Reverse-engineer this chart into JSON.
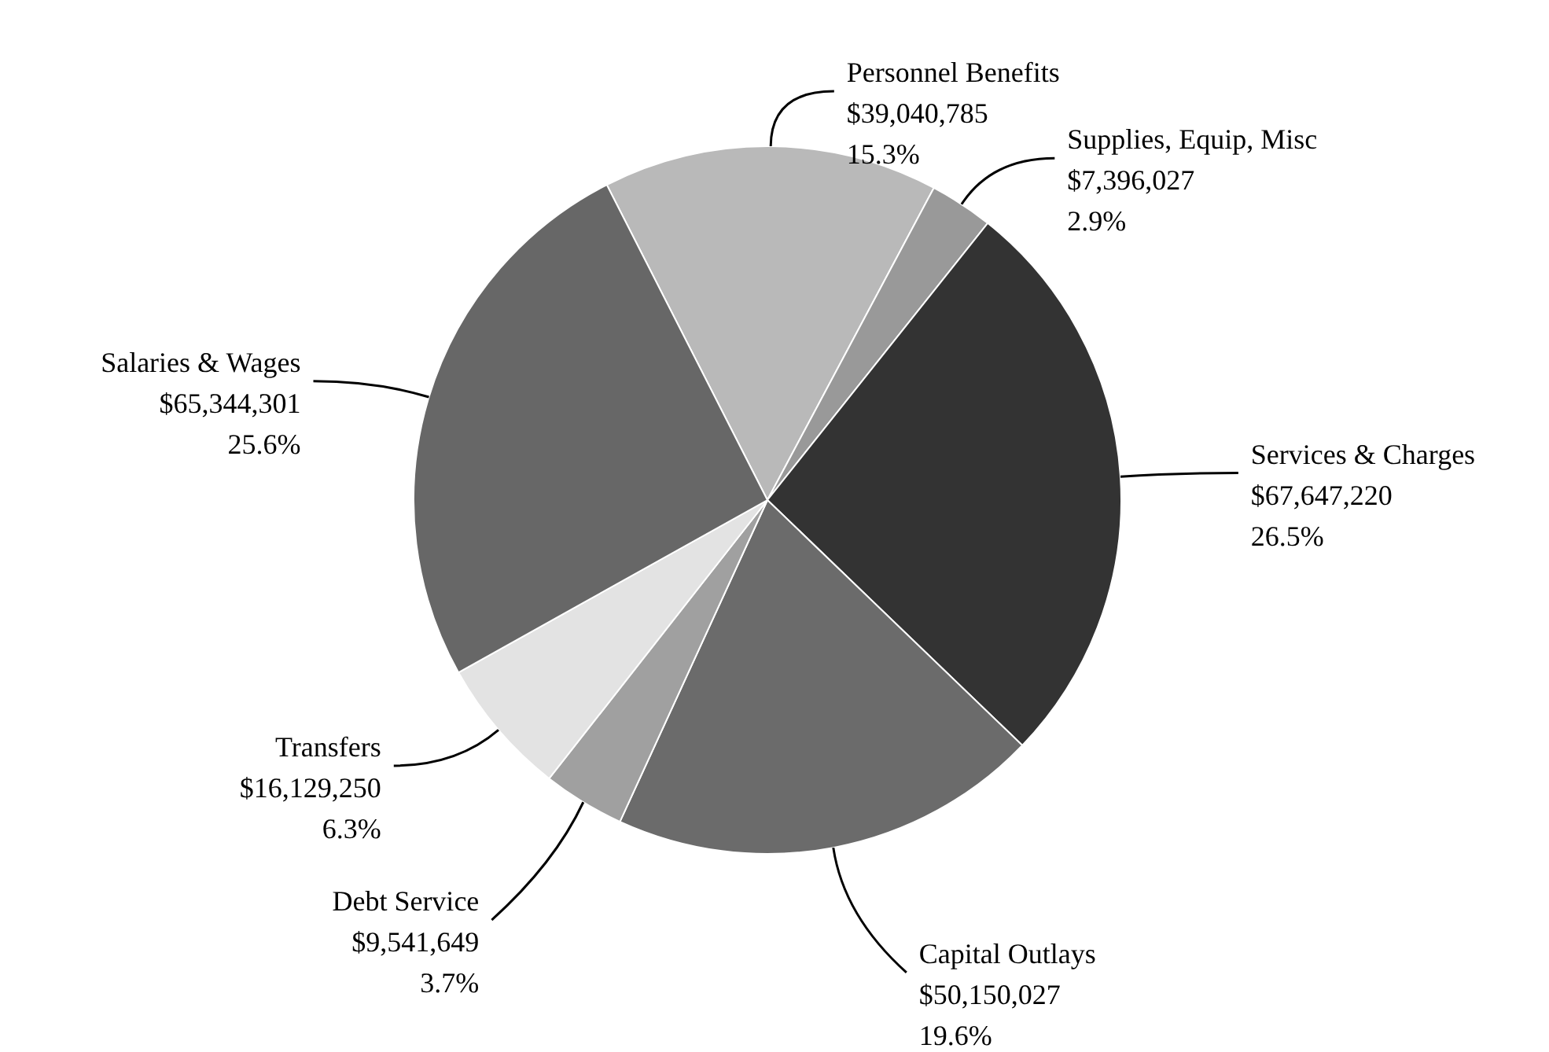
{
  "chart_data": {
    "type": "pie",
    "categories": [
      "Personnel Benefits",
      "Supplies, Equip, Misc",
      "Services & Charges",
      "Capital Outlays",
      "Debt Service",
      "Transfers",
      "Salaries & Wages"
    ],
    "values": [
      39040785,
      7396027,
      67647220,
      50150027,
      9541649,
      16129250,
      65344301
    ],
    "colors": [
      "#b9b9b9",
      "#999999",
      "#333333",
      "#6b6b6b",
      "#a0a0a0",
      "#e3e3e3",
      "#676767"
    ],
    "value_labels": [
      "$39,040,785\n15.3%",
      "$7,396,027\n2.9%",
      "$67,647,220\n26.5%",
      "$50,150,027\n19.6%",
      "$9,541,649\n3.7%",
      "$16,129,250\n6.3%",
      "$65,344,301\n25.6%"
    ]
  }
}
